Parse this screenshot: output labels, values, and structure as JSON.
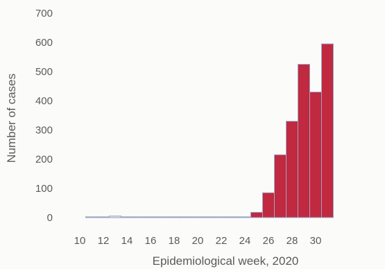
{
  "chart_data": {
    "type": "bar",
    "title": "",
    "xlabel": "Epidemiological week, 2020",
    "ylabel": "Number of cases",
    "ylim": [
      0,
      700
    ],
    "yticks": [
      0,
      100,
      200,
      300,
      400,
      500,
      600,
      700
    ],
    "xticks": [
      10,
      12,
      14,
      16,
      18,
      20,
      22,
      24,
      26,
      28,
      30
    ],
    "x": [
      11,
      12,
      13,
      14,
      15,
      16,
      17,
      18,
      19,
      20,
      21,
      22,
      23,
      24,
      25,
      26,
      27,
      28,
      29,
      30,
      31
    ],
    "series": [
      {
        "values": [
          1,
          2,
          5,
          2,
          0,
          0,
          0,
          0,
          0,
          0,
          0,
          1,
          0,
          0,
          18,
          85,
          215,
          330,
          525,
          430,
          595
        ]
      }
    ],
    "grid": false,
    "colors": {
      "bar": "#c0293f",
      "bar_edge": "#9aa8c4",
      "text": "#5a5a5a",
      "background": "#fbfbfa"
    }
  }
}
